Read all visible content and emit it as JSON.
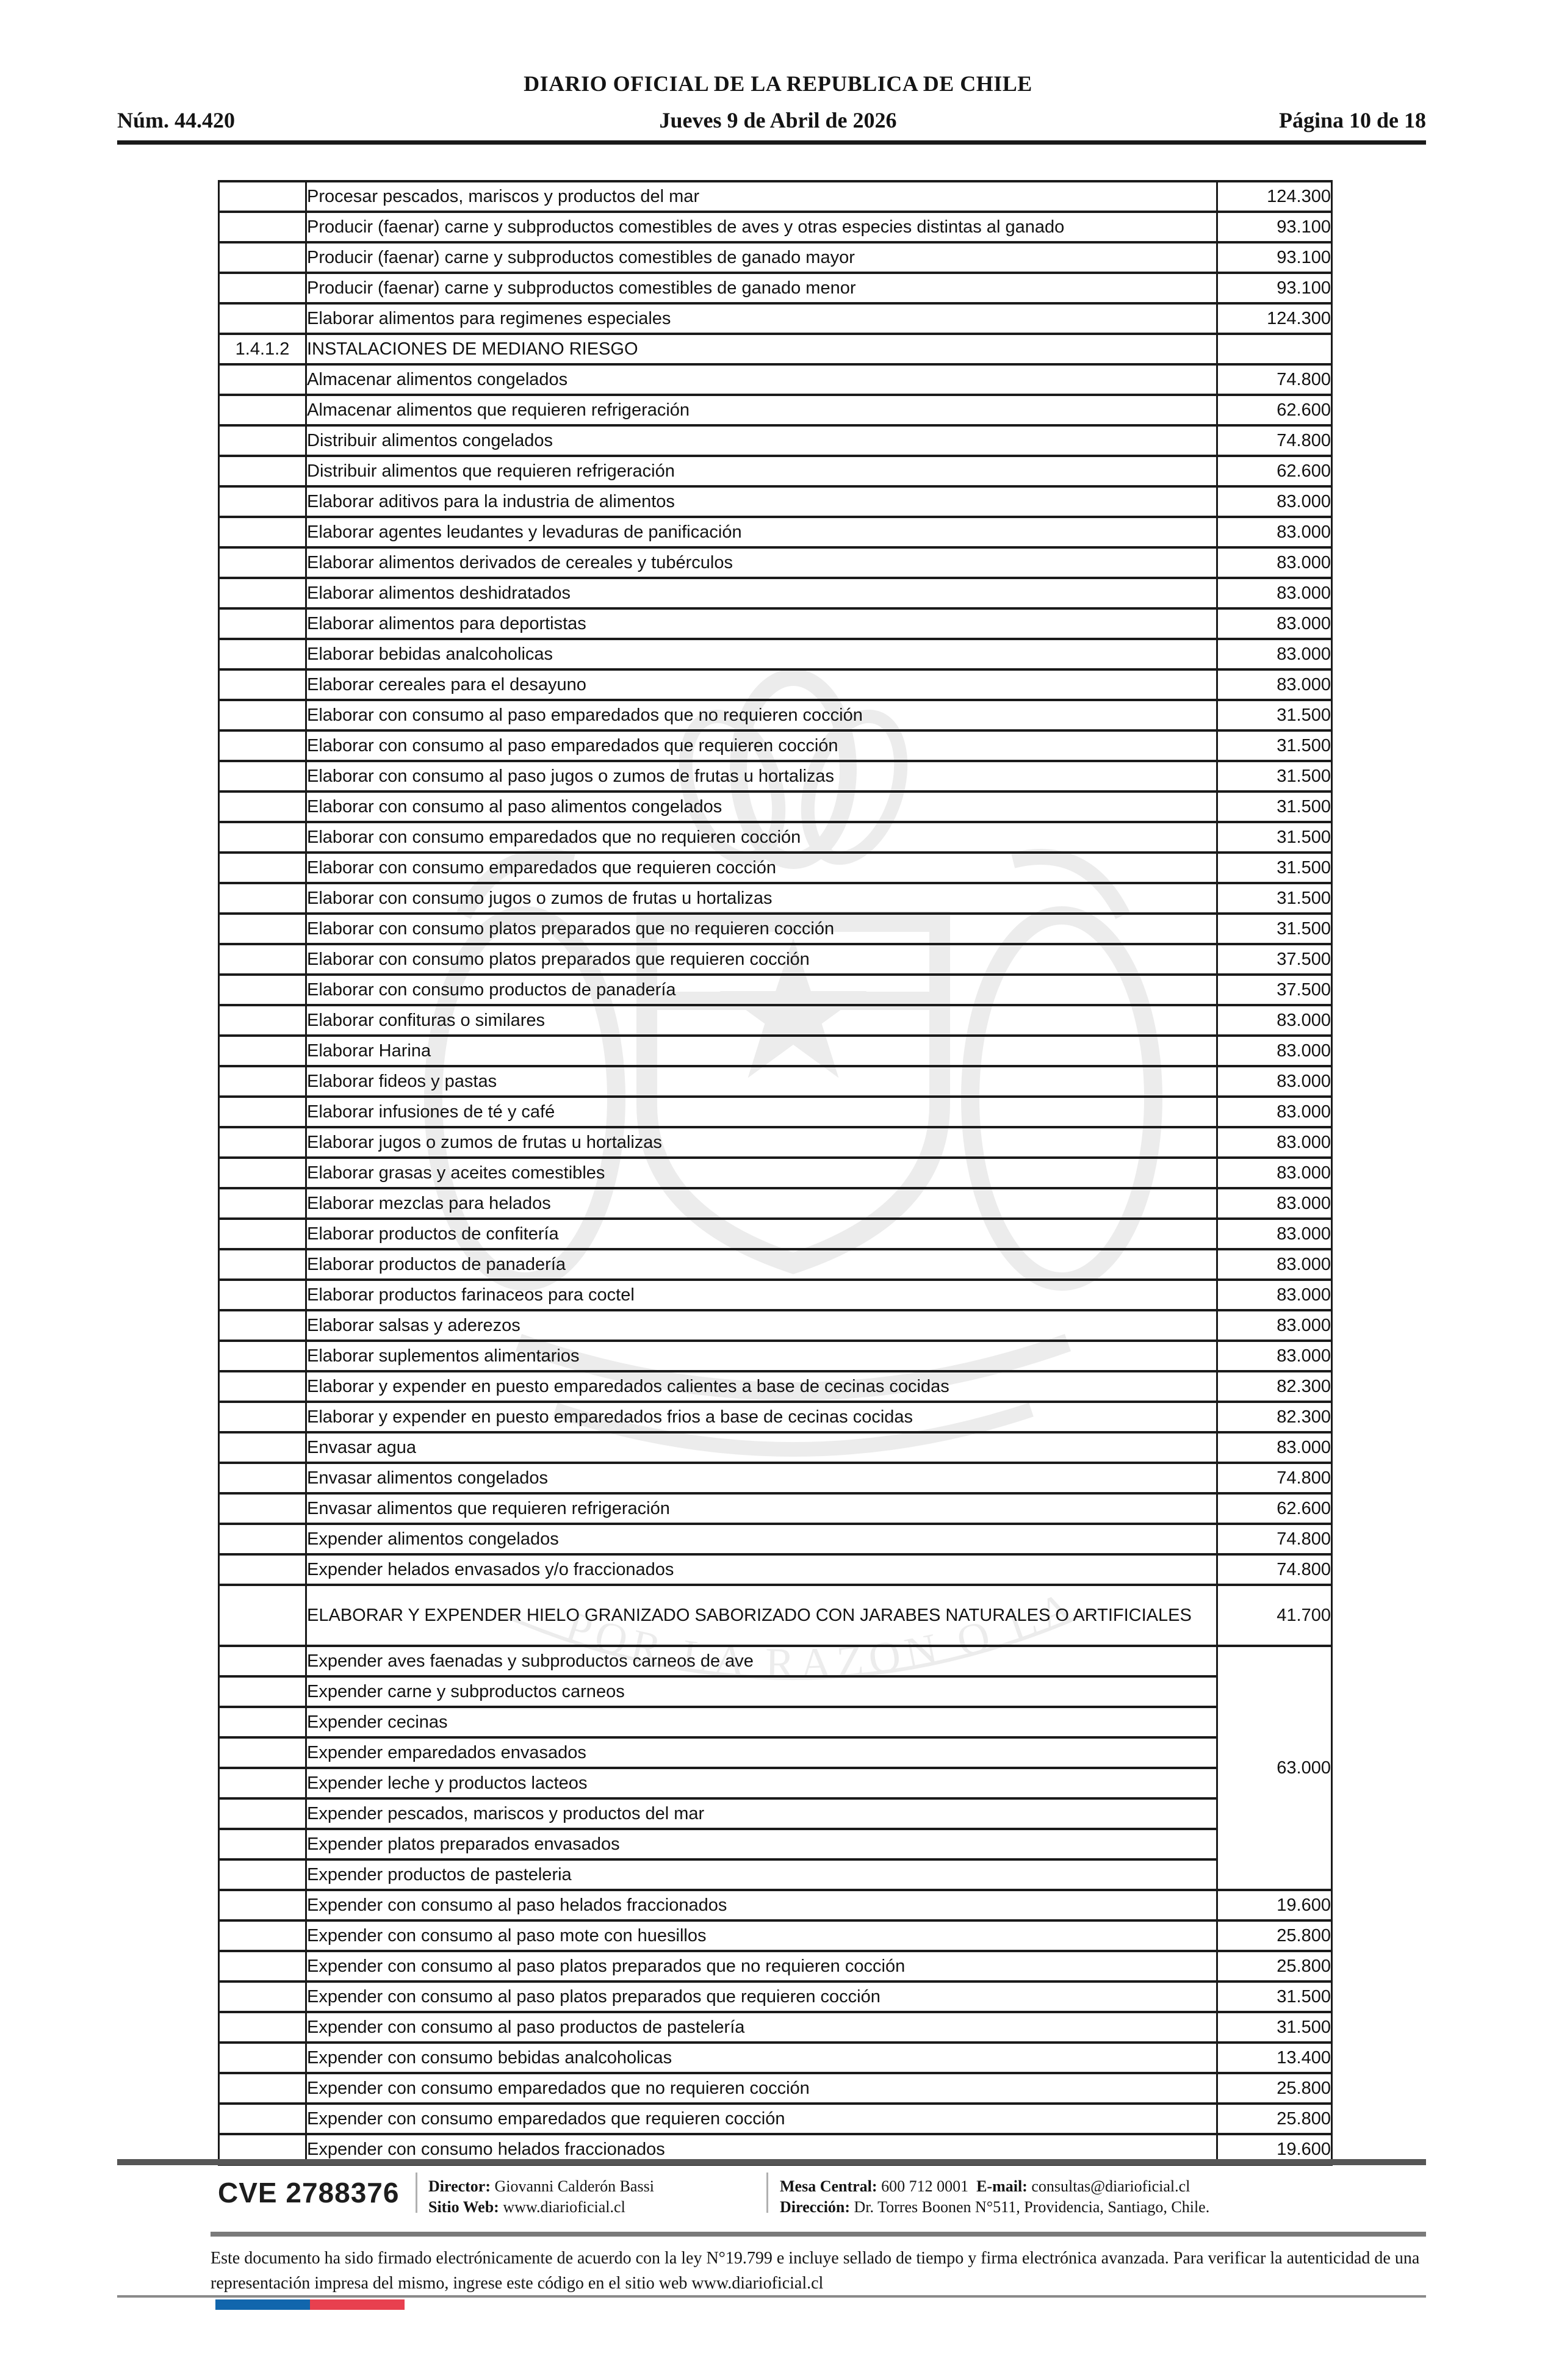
{
  "header": {
    "gazette_title": "DIARIO OFICIAL DE LA REPUBLICA DE CHILE",
    "issue_number": "Núm. 44.420",
    "date_line": "Jueves 9 de Abril de 2026",
    "page_info": "Página 10 de 18"
  },
  "watermark": {
    "motto": "POR LA RAZON O LA FUERZA"
  },
  "table": {
    "rows": [
      {
        "code": "",
        "desc": "Procesar pescados, mariscos y productos del mar",
        "value": "124.300"
      },
      {
        "code": "",
        "desc": "Producir (faenar) carne y subproductos comestibles de aves y otras especies distintas al ganado",
        "value": "93.100"
      },
      {
        "code": "",
        "desc": "Producir (faenar) carne y subproductos comestibles de ganado mayor",
        "value": "93.100"
      },
      {
        "code": "",
        "desc": "Producir (faenar) carne y subproductos comestibles de ganado menor",
        "value": "93.100"
      },
      {
        "code": "",
        "desc": "Elaborar alimentos para regimenes especiales",
        "value": "124.300"
      },
      {
        "code": "1.4.1.2",
        "desc": "INSTALACIONES DE MEDIANO RIESGO",
        "value": "",
        "section": true
      },
      {
        "code": "",
        "desc": "Almacenar alimentos congelados",
        "value": "74.800"
      },
      {
        "code": "",
        "desc": "Almacenar alimentos que requieren refrigeración",
        "value": "62.600"
      },
      {
        "code": "",
        "desc": "Distribuir alimentos congelados",
        "value": "74.800"
      },
      {
        "code": "",
        "desc": "Distribuir alimentos que requieren refrigeración",
        "value": "62.600"
      },
      {
        "code": "",
        "desc": "Elaborar aditivos para la industria de alimentos",
        "value": "83.000"
      },
      {
        "code": "",
        "desc": "Elaborar agentes leudantes y levaduras de panificación",
        "value": "83.000"
      },
      {
        "code": "",
        "desc": "Elaborar alimentos derivados de cereales y tubérculos",
        "value": "83.000"
      },
      {
        "code": "",
        "desc": "Elaborar alimentos deshidratados",
        "value": "83.000"
      },
      {
        "code": "",
        "desc": "Elaborar alimentos para deportistas",
        "value": "83.000"
      },
      {
        "code": "",
        "desc": "Elaborar bebidas analcoholicas",
        "value": "83.000"
      },
      {
        "code": "",
        "desc": "Elaborar cereales para el desayuno",
        "value": "83.000"
      },
      {
        "code": "",
        "desc": "Elaborar con consumo al paso emparedados que no requieren cocción",
        "value": "31.500"
      },
      {
        "code": "",
        "desc": "Elaborar con consumo al paso emparedados que requieren cocción",
        "value": "31.500"
      },
      {
        "code": "",
        "desc": "Elaborar con consumo al paso jugos o zumos de frutas u hortalizas",
        "value": "31.500"
      },
      {
        "code": "",
        "desc": "Elaborar con consumo al paso alimentos congelados",
        "value": "31.500"
      },
      {
        "code": "",
        "desc": "Elaborar con consumo emparedados que no requieren cocción",
        "value": "31.500"
      },
      {
        "code": "",
        "desc": "Elaborar con consumo emparedados que requieren cocción",
        "value": "31.500"
      },
      {
        "code": "",
        "desc": "Elaborar con consumo jugos o zumos de frutas u hortalizas",
        "value": "31.500"
      },
      {
        "code": "",
        "desc": "Elaborar con consumo platos preparados que no requieren cocción",
        "value": "31.500"
      },
      {
        "code": "",
        "desc": "Elaborar con consumo platos preparados que requieren cocción",
        "value": "37.500"
      },
      {
        "code": "",
        "desc": "Elaborar con consumo productos de panadería",
        "value": "37.500"
      },
      {
        "code": "",
        "desc": "Elaborar confituras o similares",
        "value": "83.000"
      },
      {
        "code": "",
        "desc": "Elaborar Harina",
        "value": "83.000"
      },
      {
        "code": "",
        "desc": "Elaborar fideos y pastas",
        "value": "83.000"
      },
      {
        "code": "",
        "desc": "Elaborar infusiones de té y café",
        "value": "83.000"
      },
      {
        "code": "",
        "desc": "Elaborar jugos o zumos de frutas u hortalizas",
        "value": "83.000"
      },
      {
        "code": "",
        "desc": "Elaborar grasas y aceites comestibles",
        "value": "83.000"
      },
      {
        "code": "",
        "desc": "Elaborar mezclas para helados",
        "value": "83.000"
      },
      {
        "code": "",
        "desc": "Elaborar productos de confitería",
        "value": "83.000"
      },
      {
        "code": "",
        "desc": "Elaborar productos de panadería",
        "value": "83.000"
      },
      {
        "code": "",
        "desc": "Elaborar productos farinaceos para coctel",
        "value": "83.000"
      },
      {
        "code": "",
        "desc": "Elaborar salsas y aderezos",
        "value": "83.000"
      },
      {
        "code": "",
        "desc": "Elaborar suplementos alimentarios",
        "value": "83.000"
      },
      {
        "code": "",
        "desc": "Elaborar y expender en puesto emparedados calientes a base de cecinas cocidas",
        "value": "82.300"
      },
      {
        "code": "",
        "desc": "Elaborar y expender en puesto emparedados frios a base de cecinas cocidas",
        "value": "82.300"
      },
      {
        "code": "",
        "desc": "Envasar agua",
        "value": "83.000"
      },
      {
        "code": "",
        "desc": "Envasar alimentos congelados",
        "value": "74.800"
      },
      {
        "code": "",
        "desc": "Envasar alimentos que requieren refrigeración",
        "value": "62.600"
      },
      {
        "code": "",
        "desc": "Expender alimentos congelados",
        "value": "74.800"
      },
      {
        "code": "",
        "desc": "Expender helados envasados y/o fraccionados",
        "value": "74.800"
      },
      {
        "code": "",
        "desc": "ELABORAR Y EXPENDER HIELO GRANIZADO SABORIZADO CON JARABES NATURALES O ARTIFICIALES",
        "value": "41.700",
        "tall": true
      },
      {
        "code": "",
        "desc": "Expender aves faenadas y subproductos carneos de ave",
        "merged_value": "63.000",
        "merged_span": 8
      },
      {
        "code": "",
        "desc": "Expender carne y subproductos carneos",
        "merged": true
      },
      {
        "code": "",
        "desc": "Expender cecinas",
        "merged": true
      },
      {
        "code": "",
        "desc": "Expender emparedados envasados",
        "merged": true
      },
      {
        "code": "",
        "desc": "Expender leche y productos lacteos",
        "merged": true
      },
      {
        "code": "",
        "desc": "Expender pescados, mariscos y productos del mar",
        "merged": true
      },
      {
        "code": "",
        "desc": "Expender platos preparados envasados",
        "merged": true
      },
      {
        "code": "",
        "desc": "Expender productos de pasteleria",
        "merged": true
      },
      {
        "code": "",
        "desc": "Expender con consumo al paso helados fraccionados",
        "value": "19.600"
      },
      {
        "code": "",
        "desc": "Expender con consumo al paso mote con huesillos",
        "value": "25.800"
      },
      {
        "code": "",
        "desc": "Expender con consumo al paso platos preparados que no requieren cocción",
        "value": "25.800"
      },
      {
        "code": "",
        "desc": "Expender con consumo al paso platos preparados que requieren cocción",
        "value": "31.500"
      },
      {
        "code": "",
        "desc": "Expender con consumo al paso productos de pastelería",
        "value": "31.500"
      },
      {
        "code": "",
        "desc": "Expender con consumo bebidas analcoholicas",
        "value": "13.400"
      },
      {
        "code": "",
        "desc": "Expender con consumo emparedados que no requieren cocción",
        "value": "25.800"
      },
      {
        "code": "",
        "desc": "Expender con consumo emparedados que requieren cocción",
        "value": "25.800"
      },
      {
        "code": "",
        "desc": "Expender con consumo helados fraccionados",
        "value": "19.600"
      }
    ]
  },
  "footer": {
    "cve": "CVE 2788376",
    "director_label": "Director:",
    "director_value": "Giovanni Calderón Bassi",
    "sitio_label": "Sitio Web:",
    "sitio_value": "www.diarioficial.cl",
    "mesa_label": "Mesa Central:",
    "mesa_value": "600 712 0001",
    "email_label": "E-mail:",
    "email_value": "consultas@diarioficial.cl",
    "direccion_label": "Dirección:",
    "direccion_value": "Dr. Torres Boonen N°511, Providencia, Santiago, Chile.",
    "legal": "Este documento ha sido firmado electrónicamente de acuerdo con la ley N°19.799 e incluye sellado de tiempo y firma electrónica avanzada. Para verificar la autenticidad de una representación impresa del mismo, ingrese este código en el sitio web www.diarioficial.cl"
  }
}
